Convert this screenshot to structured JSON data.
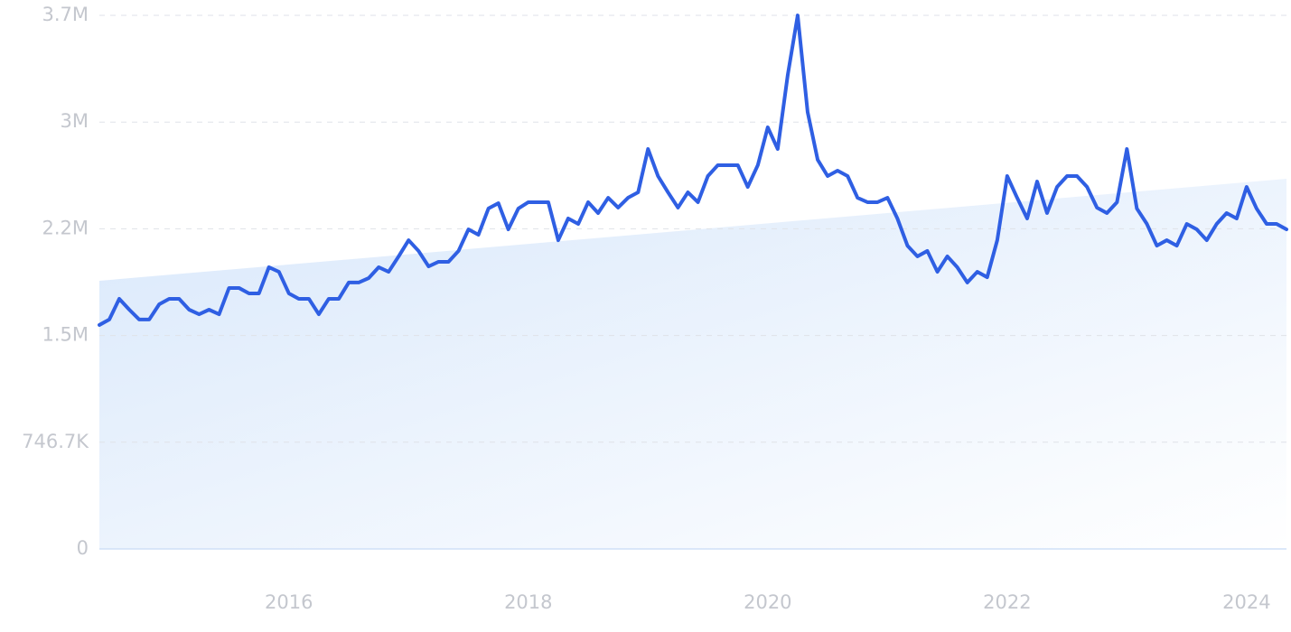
{
  "chart_data": {
    "type": "line",
    "color": "#2f5fe3",
    "grid": true,
    "xlim": [
      2014.417,
      2024.333
    ],
    "ylim": [
      0,
      3733333
    ],
    "xticks": [
      2016,
      2018,
      2020,
      2022,
      2024
    ],
    "yticks": [
      0,
      {
        "value": 746667,
        "label": "746.7K"
      },
      {
        "value": 1493333,
        "label": "1.5M"
      },
      {
        "value": 2240000,
        "label": "2.2M"
      },
      {
        "value": 2986667,
        "label": "3M"
      },
      {
        "value": 3733333,
        "label": "3.7M"
      }
    ],
    "trend": [
      1876000,
      2590000
    ],
    "x": [
      2014.417,
      2014.5,
      2014.583,
      2014.667,
      2014.75,
      2014.833,
      2014.917,
      2015,
      2015.083,
      2015.167,
      2015.25,
      2015.333,
      2015.417,
      2015.5,
      2015.583,
      2015.667,
      2015.75,
      2015.833,
      2015.917,
      2016,
      2016.083,
      2016.167,
      2016.25,
      2016.333,
      2016.417,
      2016.5,
      2016.583,
      2016.667,
      2016.75,
      2016.833,
      2016.917,
      2017,
      2017.083,
      2017.167,
      2017.25,
      2017.333,
      2017.417,
      2017.5,
      2017.583,
      2017.667,
      2017.75,
      2017.833,
      2017.917,
      2018,
      2018.083,
      2018.167,
      2018.25,
      2018.333,
      2018.417,
      2018.5,
      2018.583,
      2018.667,
      2018.75,
      2018.833,
      2018.917,
      2019,
      2019.083,
      2019.167,
      2019.25,
      2019.333,
      2019.417,
      2019.5,
      2019.583,
      2019.667,
      2019.75,
      2019.833,
      2019.917,
      2020,
      2020.083,
      2020.167,
      2020.25,
      2020.333,
      2020.417,
      2020.5,
      2020.583,
      2020.667,
      2020.75,
      2020.833,
      2020.917,
      2021,
      2021.083,
      2021.167,
      2021.25,
      2021.333,
      2021.417,
      2021.5,
      2021.583,
      2021.667,
      2021.75,
      2021.833,
      2021.917,
      2022,
      2022.083,
      2022.167,
      2022.25,
      2022.333,
      2022.417,
      2022.5,
      2022.583,
      2022.667,
      2022.75,
      2022.833,
      2022.917,
      2023,
      2023.083,
      2023.167,
      2023.25,
      2023.333,
      2023.417,
      2023.5,
      2023.583,
      2023.667,
      2023.75,
      2023.833,
      2023.917,
      2024,
      2024.083,
      2024.167,
      2024.25,
      2024.333
    ],
    "values": [
      1567000,
      1605000,
      1750000,
      1674000,
      1605000,
      1605000,
      1712000,
      1750000,
      1750000,
      1674000,
      1642000,
      1674000,
      1642000,
      1826000,
      1826000,
      1788000,
      1788000,
      1971000,
      1939000,
      1788000,
      1750000,
      1750000,
      1642000,
      1750000,
      1750000,
      1864000,
      1864000,
      1895000,
      1971000,
      1939000,
      2047000,
      2160000,
      2085000,
      1977000,
      2009000,
      2009000,
      2085000,
      2236000,
      2198000,
      2382000,
      2419000,
      2236000,
      2382000,
      2426000,
      2426000,
      2426000,
      2160000,
      2312000,
      2274000,
      2426000,
      2350000,
      2457000,
      2388000,
      2457000,
      2495000,
      2798000,
      2609000,
      2495000,
      2388000,
      2495000,
      2426000,
      2609000,
      2685000,
      2685000,
      2685000,
      2533000,
      2685000,
      2950000,
      2798000,
      3316000,
      3733000,
      3057000,
      2723000,
      2609000,
      2647000,
      2609000,
      2457000,
      2426000,
      2426000,
      2457000,
      2312000,
      2122000,
      2047000,
      2085000,
      1939000,
      2047000,
      1971000,
      1864000,
      1939000,
      1901000,
      2160000,
      2609000,
      2457000,
      2312000,
      2571000,
      2350000,
      2533000,
      2609000,
      2609000,
      2533000,
      2388000,
      2350000,
      2426000,
      2798000,
      2382000,
      2274000,
      2122000,
      2160000,
      2122000,
      2274000,
      2236000,
      2160000,
      2274000,
      2350000,
      2312000,
      2533000,
      2382000,
      2274000,
      2274000,
      2236000
    ]
  }
}
